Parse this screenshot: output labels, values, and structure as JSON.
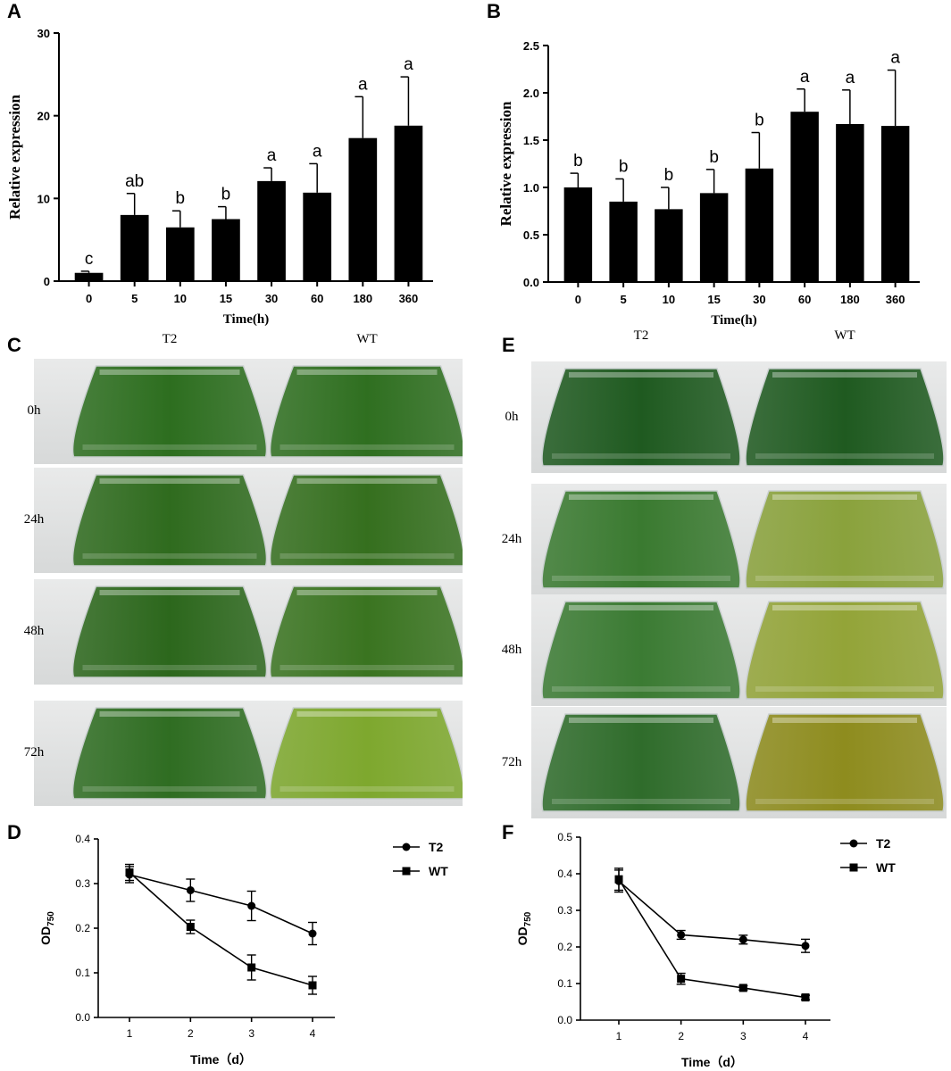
{
  "panels": {
    "A": "A",
    "B": "B",
    "C": "C",
    "D": "D",
    "E": "E",
    "F": "F"
  },
  "chart_data": [
    {
      "id": "A",
      "type": "bar",
      "xlabel": "Time(h)",
      "ylabel": "Relative expression",
      "ylim": [
        0,
        30
      ],
      "yticks": [
        "0",
        "10",
        "20",
        "30"
      ],
      "categories": [
        "0",
        "5",
        "10",
        "15",
        "30",
        "60",
        "180",
        "360"
      ],
      "values": [
        1.0,
        8.0,
        6.5,
        7.5,
        12.1,
        10.7,
        17.3,
        18.8
      ],
      "errors": [
        0.2,
        2.6,
        2.0,
        1.5,
        1.6,
        3.5,
        5.0,
        5.9
      ],
      "letters": [
        "c",
        "ab",
        "b",
        "b",
        "a",
        "a",
        "a",
        "a"
      ]
    },
    {
      "id": "B",
      "type": "bar",
      "xlabel": "Time(h)",
      "ylabel": "Relative expression",
      "ylim": [
        0,
        2.5
      ],
      "yticks": [
        "0.0",
        "0.5",
        "1.0",
        "1.5",
        "2.0",
        "2.5"
      ],
      "categories": [
        "0",
        "5",
        "10",
        "15",
        "30",
        "60",
        "180",
        "360"
      ],
      "values": [
        1.0,
        0.85,
        0.77,
        0.94,
        1.2,
        1.8,
        1.67,
        1.65
      ],
      "errors": [
        0.15,
        0.24,
        0.23,
        0.25,
        0.38,
        0.24,
        0.36,
        0.59
      ],
      "letters": [
        "b",
        "b",
        "b",
        "b",
        "b",
        "a",
        "a",
        "a"
      ]
    },
    {
      "id": "D",
      "type": "line",
      "xlabel": "Time（d）",
      "ylabel": "OD",
      "ylabel_sub": "750",
      "ylim": [
        0,
        0.4
      ],
      "yticks": [
        "0.0",
        "0.1",
        "0.2",
        "0.3",
        "0.4"
      ],
      "x": [
        1,
        2,
        3,
        4
      ],
      "xticks": [
        "1",
        "2",
        "3",
        "4"
      ],
      "legend_position": "top-right",
      "series": [
        {
          "name": "T2",
          "marker": "circle",
          "values": [
            0.32,
            0.285,
            0.25,
            0.188
          ],
          "errors": [
            0.018,
            0.025,
            0.033,
            0.025
          ]
        },
        {
          "name": "WT",
          "marker": "square",
          "values": [
            0.325,
            0.203,
            0.112,
            0.072
          ],
          "errors": [
            0.018,
            0.015,
            0.028,
            0.02
          ]
        }
      ]
    },
    {
      "id": "F",
      "type": "line",
      "xlabel": "Time（d）",
      "ylabel": "OD",
      "ylabel_sub": "750",
      "ylim": [
        0,
        0.5
      ],
      "yticks": [
        "0.0",
        "0.1",
        "0.2",
        "0.3",
        "0.4",
        "0.5"
      ],
      "x": [
        1,
        2,
        3,
        4
      ],
      "xticks": [
        "1",
        "2",
        "3",
        "4"
      ],
      "legend_position": "top-right",
      "series": [
        {
          "name": "T2",
          "marker": "circle",
          "values": [
            0.38,
            0.233,
            0.22,
            0.203
          ],
          "errors": [
            0.03,
            0.012,
            0.012,
            0.018
          ]
        },
        {
          "name": "WT",
          "marker": "square",
          "values": [
            0.385,
            0.113,
            0.088,
            0.062
          ],
          "errors": [
            0.03,
            0.015,
            0.006,
            0.006
          ]
        }
      ]
    }
  ],
  "photos": {
    "C": {
      "columns": [
        "T2",
        "WT"
      ],
      "rows": [
        "0h",
        "24h",
        "48h",
        "72h"
      ],
      "colors": {
        "T2": [
          "#2d6e1f",
          "#2f6b1e",
          "#2c671c",
          "#2f6d22"
        ],
        "WT": [
          "#2f6f20",
          "#356f1e",
          "#3a7420",
          "#7ea82e"
        ]
      }
    },
    "E": {
      "columns": [
        "T2",
        "WT"
      ],
      "rows": [
        "0h",
        "24h",
        "48h",
        "72h"
      ],
      "colors": {
        "T2": [
          "#1f5a20",
          "#3a7a30",
          "#3b7b33",
          "#2f6c2b"
        ],
        "WT": [
          "#1f5a20",
          "#8aa23c",
          "#93a438",
          "#8e8c1e"
        ]
      }
    }
  }
}
